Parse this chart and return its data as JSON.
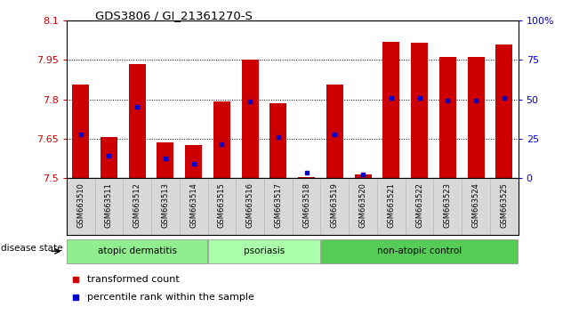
{
  "title": "GDS3806 / GI_21361270-S",
  "samples": [
    "GSM663510",
    "GSM663511",
    "GSM663512",
    "GSM663513",
    "GSM663514",
    "GSM663515",
    "GSM663516",
    "GSM663517",
    "GSM663518",
    "GSM663519",
    "GSM663520",
    "GSM663521",
    "GSM663522",
    "GSM663523",
    "GSM663524",
    "GSM663525"
  ],
  "bar_values": [
    7.855,
    7.655,
    7.935,
    7.635,
    7.625,
    7.79,
    7.95,
    7.785,
    7.505,
    7.855,
    7.515,
    8.02,
    8.015,
    7.96,
    7.96,
    8.01
  ],
  "percentile_values": [
    7.665,
    7.585,
    7.77,
    7.575,
    7.555,
    7.63,
    7.79,
    7.655,
    7.52,
    7.665,
    7.515,
    7.805,
    7.805,
    7.795,
    7.795,
    7.805
  ],
  "bar_color": "#cc0000",
  "percentile_color": "#0000cc",
  "ymin": 7.5,
  "ymax": 8.1,
  "yticks": [
    7.5,
    7.65,
    7.8,
    7.95,
    8.1
  ],
  "ytick_labels": [
    "7.5",
    "7.65",
    "7.8",
    "7.95",
    "8.1"
  ],
  "right_yticks": [
    0,
    25,
    50,
    75,
    100
  ],
  "right_ytick_labels": [
    "0",
    "25",
    "50",
    "75",
    "100%"
  ],
  "groups": [
    {
      "label": "atopic dermatitis",
      "start": 0,
      "end": 4,
      "color": "#90ee90"
    },
    {
      "label": "psoriasis",
      "start": 5,
      "end": 7,
      "color": "#aaffaa"
    },
    {
      "label": "non-atopic control",
      "start": 9,
      "end": 15,
      "color": "#55cc55"
    }
  ],
  "disease_state_label": "disease state",
  "legend_items": [
    {
      "label": "transformed count",
      "color": "#cc0000"
    },
    {
      "label": "percentile rank within the sample",
      "color": "#0000cc"
    }
  ],
  "bar_width": 0.6,
  "background_color": "#ffffff",
  "axis_bg_color": "#ffffff",
  "grid_color": "#000000",
  "ylabel_color": "#cc0000",
  "right_ylabel_color": "#0000cc",
  "xtick_bg_color": "#d8d8d8"
}
